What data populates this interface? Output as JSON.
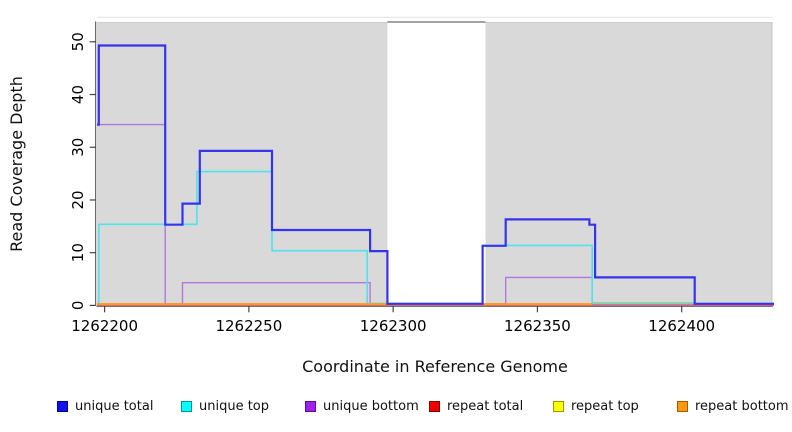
{
  "figure": {
    "x_axis_title": "Coordinate in Reference Genome",
    "y_axis_title": "Read Coverage Depth"
  },
  "chart_data": {
    "type": "line",
    "subtype": "step-coverage-plot",
    "title": "",
    "xlabel": "Coordinate in Reference Genome",
    "ylabel": "Read Coverage Depth",
    "x_axis": {
      "ticks": [
        1262200,
        1262250,
        1262300,
        1262350,
        1262400
      ],
      "tick_labels": [
        "1262200",
        "1262250",
        "1262300",
        "1262350",
        "1262400"
      ],
      "range": [
        1262197,
        1262432
      ]
    },
    "y_axis": {
      "ticks": [
        0,
        10,
        20,
        30,
        40,
        50
      ],
      "tick_labels": [
        "0",
        "10",
        "20",
        "30",
        "40",
        "50"
      ],
      "range": [
        0,
        54
      ],
      "tick_label_rotation_deg": 90
    },
    "plot_background": "#d9d9d9",
    "masked_region": {
      "from": 1262298,
      "to": 1262332,
      "fill": "#ffffff",
      "top_border_color": "#979797",
      "note": "white unshaded band through full plot height"
    },
    "grid": "off",
    "legend_position": "bottom",
    "series": [
      {
        "id": "unique_total",
        "label": "unique total",
        "color": "#3434ef",
        "segments": [
          [
            1262197.4,
            1262198,
            34
          ],
          [
            1262198,
            1262221,
            49
          ],
          [
            1262221,
            1262227,
            15
          ],
          [
            1262227,
            1262233,
            19
          ],
          [
            1262233,
            1262258,
            29
          ],
          [
            1262258,
            1262292,
            14
          ],
          [
            1262292,
            1262298,
            10
          ],
          [
            1262298,
            1262331,
            0
          ],
          [
            1262331,
            1262339,
            11
          ],
          [
            1262339,
            1262368,
            16
          ],
          [
            1262368,
            1262370,
            15
          ],
          [
            1262370,
            1262404.5,
            5
          ],
          [
            1262404.5,
            1262432,
            0
          ]
        ]
      },
      {
        "id": "unique_top",
        "label": "unique top",
        "color": "#4fe3ec",
        "segments": [
          [
            1262197.4,
            1262198,
            0
          ],
          [
            1262198,
            1262232,
            15
          ],
          [
            1262232,
            1262258,
            25
          ],
          [
            1262258,
            1262291,
            10
          ],
          [
            1262291,
            1262331,
            0
          ],
          [
            1262331,
            1262369,
            11
          ],
          [
            1262369,
            1262432,
            0
          ]
        ]
      },
      {
        "id": "unique_bottom",
        "label": "unique bottom",
        "color": "#b277dd",
        "segments": [
          [
            1262197.4,
            1262221,
            34
          ],
          [
            1262221,
            1262227,
            0
          ],
          [
            1262227,
            1262292,
            4
          ],
          [
            1262292,
            1262339,
            0
          ],
          [
            1262339,
            1262369,
            5
          ],
          [
            1262369,
            1262432,
            0
          ]
        ]
      },
      {
        "id": "repeat_total",
        "label": "repeat total",
        "color": "#e05a74",
        "segments": [
          [
            1262197.4,
            1262432,
            0
          ]
        ]
      },
      {
        "id": "repeat_top",
        "label": "repeat top",
        "color": "#ffff00",
        "segments": [
          [
            1262197.4,
            1262432,
            0
          ]
        ]
      },
      {
        "id": "repeat_bottom",
        "label": "repeat bottom",
        "color": "#ff9a14",
        "segments": [
          [
            1262197.4,
            1262369,
            0
          ]
        ]
      }
    ],
    "overlap_segments": [
      {
        "from": 1262369,
        "to": 1262404.5,
        "value": 0,
        "color": "#8ecf8e",
        "note": "repeat-top line drawn over unique-top line renders pale green at zero"
      }
    ],
    "legend": {
      "items": [
        {
          "label": "unique total",
          "fill": "#1111ee",
          "border": "#000090"
        },
        {
          "label": "unique top",
          "fill": "#00ffff",
          "border": "#009595"
        },
        {
          "label": "unique bottom",
          "fill": "#a020f0",
          "border": "#5a1090"
        },
        {
          "label": "repeat total",
          "fill": "#ee0000",
          "border": "#8e0000"
        },
        {
          "label": "repeat top",
          "fill": "#ffff00",
          "border": "#9a9a00"
        },
        {
          "label": "repeat bottom",
          "fill": "#ff9912",
          "border": "#a05c00"
        }
      ]
    }
  }
}
